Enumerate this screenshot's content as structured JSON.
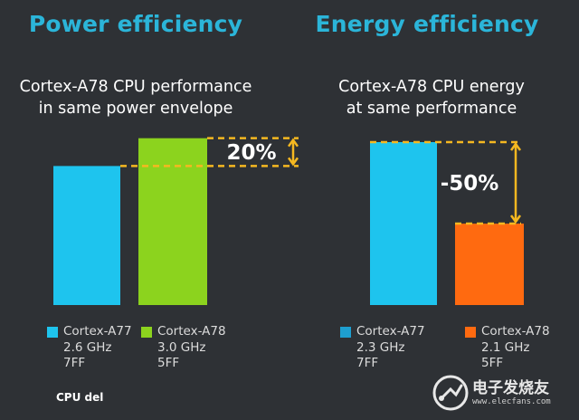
{
  "chart_data": [
    {
      "type": "bar",
      "heading": "Power efficiency",
      "title": "Cortex-A78 CPU performance in same power envelope",
      "title_lines": [
        "Cortex-A78 CPU performance",
        "in same power envelope"
      ],
      "categories": [
        "Cortex-A77",
        "Cortex-A78"
      ],
      "values": [
        100,
        120
      ],
      "ylim": [
        0,
        125
      ],
      "colors": [
        "#1ec4ee",
        "#8cd31e"
      ],
      "annotation": "20%",
      "grid": false,
      "legend": [
        {
          "name": "Cortex-A77",
          "lines": [
            "Cortex-A77",
            "2.6 GHz",
            "7FF"
          ],
          "color": "#1ec4ee"
        },
        {
          "name": "Cortex-A78",
          "lines": [
            "Cortex-A78",
            "3.0 GHz",
            "5FF"
          ],
          "color": "#8cd31e"
        }
      ]
    },
    {
      "type": "bar",
      "heading": "Energy efficiency",
      "title": "Cortex-A78 CPU energy at same performance",
      "title_lines": [
        "Cortex-A78 CPU energy",
        "at same performance"
      ],
      "categories": [
        "Cortex-A77",
        "Cortex-A78"
      ],
      "values": [
        100,
        50
      ],
      "ylim": [
        0,
        105
      ],
      "colors": [
        "#1ec4ee",
        "#ff6a10"
      ],
      "annotation": "-50%",
      "grid": false,
      "legend": [
        {
          "name": "Cortex-A77",
          "lines": [
            "Cortex-A77",
            "2.3 GHz",
            "7FF"
          ],
          "color": "#1e9fd0"
        },
        {
          "name": "Cortex-A78",
          "lines": [
            "Cortex-A78",
            "2.1 GHz",
            "5FF"
          ],
          "color": "#ff6a10"
        }
      ]
    }
  ],
  "footnote": "CPU del",
  "watermark": {
    "text": "电子发烧友",
    "url": "www.elecfans.com"
  },
  "colors": {
    "heading": "#2bb5d9",
    "background": "#2e3135",
    "annotation_line": "#f5b820"
  }
}
